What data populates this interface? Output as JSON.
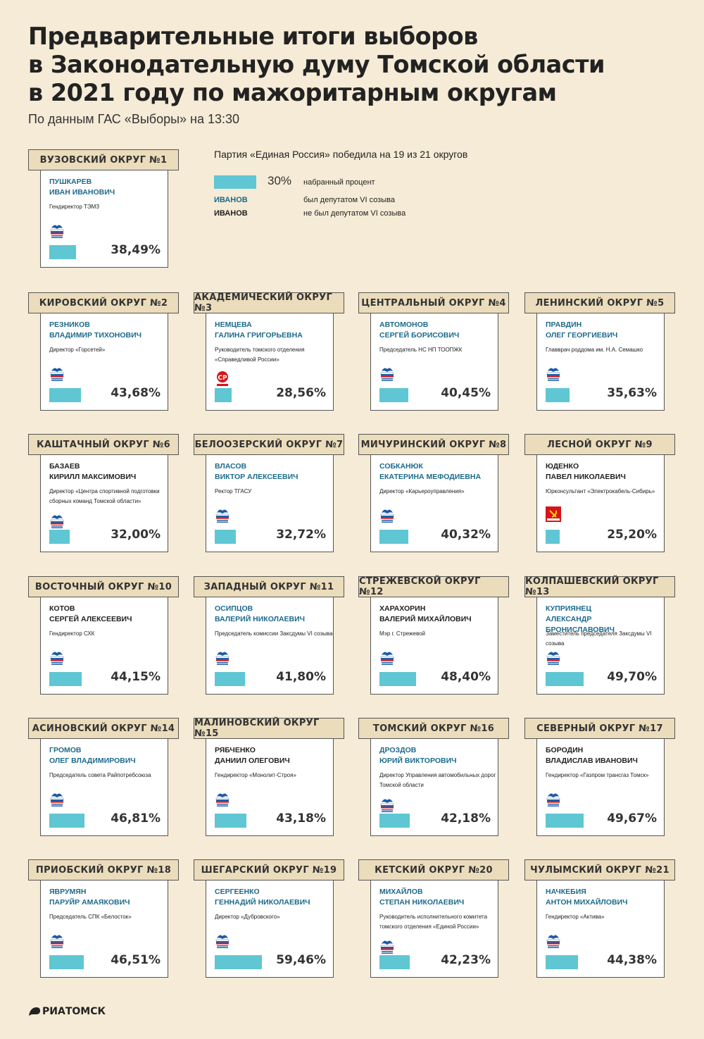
{
  "title_line1": "Предварительные итоги выборов",
  "title_line2": "в Законодательную думу Томской области",
  "title_line3": "в 2021 году по мажоритарным округам",
  "subtitle": "По данным ГАС «Выборы» на 13:30",
  "legend": {
    "summary": "Партия «Единая Россия» победила на 19 из 21 округов",
    "sample_pct": "30%",
    "pct_label": "набранный процент",
    "inc_sample": "ИВАНОВ",
    "inc_label": "был депутатом VI созыва",
    "new_sample": "ИВАНОВ",
    "new_label": "не был депутатом VI созыва"
  },
  "colors": {
    "background": "#f5ebd6",
    "tab": "#ebdcbc",
    "bar": "#5fc6d3",
    "incumbent": "#1c6a8c",
    "new": "#222222",
    "er": "#1b5aa3",
    "kprf": "#d7141a"
  },
  "brand": "РИАТОМСК",
  "chart_data": {
    "type": "bar",
    "title": "Предварительные итоги выборов в Законодательную думу Томской области в 2021 году по мажоритарным округам",
    "unit": "%",
    "districts": [
      {
        "district": "ВУЗОВСКИЙ ОКРУГ №1",
        "name1": "ПУШКАРЕВ",
        "name2": "ИВАН ИВАНОВИЧ",
        "job": "Гендиректор ТЭМЗ",
        "party": "er",
        "incumbent": true,
        "value": 38.49,
        "pct": "38,49%"
      },
      {
        "district": "КИРОВСКИЙ ОКРУГ №2",
        "name1": "РЕЗНИКОВ",
        "name2": "ВЛАДИМИР ТИХОНОВИЧ",
        "job": "Директор «Горсетей»",
        "party": "er",
        "incumbent": true,
        "value": 43.68,
        "pct": "43,68%"
      },
      {
        "district": "АКАДЕМИЧЕСКИЙ ОКРУГ №3",
        "name1": "НЕМЦЕВА",
        "name2": "ГАЛИНА ГРИГОРЬЕВНА",
        "job": "Руководитель томского отделения «Справедливой России»",
        "party": "sr",
        "incumbent": true,
        "value": 28.56,
        "pct": "28,56%"
      },
      {
        "district": "ЦЕНТРАЛЬНЫЙ ОКРУГ №4",
        "name1": "АВТОМОНОВ",
        "name2": "СЕРГЕЙ БОРИСОВИЧ",
        "job": "Председатель НС НП ТООПЖК",
        "party": "er",
        "incumbent": true,
        "value": 40.45,
        "pct": "40,45%"
      },
      {
        "district": "ЛЕНИНСКИЙ ОКРУГ №5",
        "name1": "ПРАВДИН",
        "name2": "ОЛЕГ ГЕОРГИЕВИЧ",
        "job": "Главврач роддома им. Н.А. Семашко",
        "party": "er",
        "incumbent": true,
        "value": 35.63,
        "pct": "35,63%"
      },
      {
        "district": "КАШТАЧНЫЙ ОКРУГ №6",
        "name1": "БАЗАЕВ",
        "name2": "КИРИЛЛ МАКСИМОВИЧ",
        "job": "Директор «Центра спортивной подготовки сборных команд Томской области»",
        "party": "er",
        "incumbent": false,
        "value": 32.0,
        "pct": "32,00%"
      },
      {
        "district": "БЕЛООЗЕРСКИЙ ОКРУГ №7",
        "name1": "ВЛАСОВ",
        "name2": "ВИКТОР АЛЕКСЕЕВИЧ",
        "job": "Ректор ТГАСУ",
        "party": "er",
        "incumbent": true,
        "value": 32.72,
        "pct": "32,72%"
      },
      {
        "district": "МИЧУРИНСКИЙ ОКРУГ №8",
        "name1": "СОБКАНЮК",
        "name2": "ЕКАТЕРИНА МЕФОДИЕВНА",
        "job": "Директор «Карьероуправления»",
        "party": "er",
        "incumbent": true,
        "value": 40.32,
        "pct": "40,32%"
      },
      {
        "district": "ЛЕСНОЙ ОКРУГ №9",
        "name1": "ЮДЕНКО",
        "name2": "ПАВЕЛ НИКОЛАЕВИЧ",
        "job": "Юрконсультант «Электрокабель-Сибирь»",
        "party": "kprf",
        "incumbent": false,
        "value": 25.2,
        "pct": "25,20%"
      },
      {
        "district": "ВОСТОЧНЫЙ ОКРУГ №10",
        "name1": "КОТОВ",
        "name2": "СЕРГЕЙ АЛЕКСЕЕВИЧ",
        "job": "Гендиректор СХК",
        "party": "er",
        "incumbent": false,
        "value": 44.15,
        "pct": "44,15%"
      },
      {
        "district": "ЗАПАДНЫЙ ОКРУГ №11",
        "name1": "ОСИПЦОВ",
        "name2": "ВАЛЕРИЙ НИКОЛАЕВИЧ",
        "job": "Председатель комиссии Заксдумы VI созыва",
        "party": "er",
        "incumbent": true,
        "value": 41.8,
        "pct": "41,80%"
      },
      {
        "district": "СТРЕЖЕВСКОЙ ОКРУГ №12",
        "name1": "ХАРАХОРИН",
        "name2": "ВАЛЕРИЙ МИХАЙЛОВИЧ",
        "job": "Мэр г. Стрежевой",
        "party": "er",
        "incumbent": false,
        "value": 48.4,
        "pct": "48,40%"
      },
      {
        "district": "КОЛПАШЕВСКИЙ ОКРУГ №13",
        "name1": "КУПРИЯНЕЦ",
        "name2": "АЛЕКСАНДР БРОНИСЛАВОВИЧ",
        "job": "Заместитель председателя Заксдумы VI созыва",
        "party": "er",
        "incumbent": true,
        "value": 49.7,
        "pct": "49,70%"
      },
      {
        "district": "АСИНОВСКИЙ ОКРУГ №14",
        "name1": "ГРОМОВ",
        "name2": "ОЛЕГ ВЛАДИМИРОВИЧ",
        "job": "Председатель совета Райпотребсоюза",
        "party": "er",
        "incumbent": true,
        "value": 46.81,
        "pct": "46,81%"
      },
      {
        "district": "МАЛИНОВСКИЙ ОКРУГ №15",
        "name1": "РЯБЧЕНКО",
        "name2": "ДАНИИЛ ОЛЕГОВИЧ",
        "job": "Гендиректор «Монолит-Строя»",
        "party": "er",
        "incumbent": false,
        "value": 43.18,
        "pct": "43,18%"
      },
      {
        "district": "ТОМСКИЙ ОКРУГ №16",
        "name1": "ДРОЗДОВ",
        "name2": "ЮРИЙ ВИКТОРОВИЧ",
        "job": "Директор Управления автомобильных дорог Томской области",
        "party": "er",
        "incumbent": true,
        "value": 42.18,
        "pct": "42,18%"
      },
      {
        "district": "СЕВЕРНЫЙ ОКРУГ №17",
        "name1": "БОРОДИН",
        "name2": "ВЛАДИСЛАВ ИВАНОВИЧ",
        "job": "Гендиректор «Газпром трансгаз Томск»",
        "party": "er",
        "incumbent": false,
        "value": 49.67,
        "pct": "49,67%"
      },
      {
        "district": "ПРИОБСКИЙ ОКРУГ №18",
        "name1": "ЯВРУМЯН",
        "name2": "ПАРУЙР АМАЯКОВИЧ",
        "job": "Председатель СПК «Белосток»",
        "party": "er",
        "incumbent": true,
        "value": 46.51,
        "pct": "46,51%"
      },
      {
        "district": "ШЕГАРСКИЙ ОКРУГ №19",
        "name1": "СЕРГЕЕНКО",
        "name2": "ГЕННАДИЙ НИКОЛАЕВИЧ",
        "job": "Директор «Дубровского»",
        "party": "er",
        "incumbent": true,
        "value": 59.46,
        "pct": "59,46%"
      },
      {
        "district": "КЕТСКИЙ ОКРУГ №20",
        "name1": "МИХАЙЛОВ",
        "name2": "СТЕПАН НИКОЛАЕВИЧ",
        "job": "Руководитель исполнительного комитета томского отделения «Единой России»",
        "party": "er",
        "incumbent": true,
        "value": 42.23,
        "pct": "42,23%"
      },
      {
        "district": "ЧУЛЫМСКИЙ ОКРУГ №21",
        "name1": "НАЧКЕБИЯ",
        "name2": "АНТОН МИХАЙЛОВИЧ",
        "job": "Гендиректор «Актива»",
        "party": "er",
        "incumbent": true,
        "value": 44.38,
        "pct": "44,38%"
      }
    ]
  }
}
